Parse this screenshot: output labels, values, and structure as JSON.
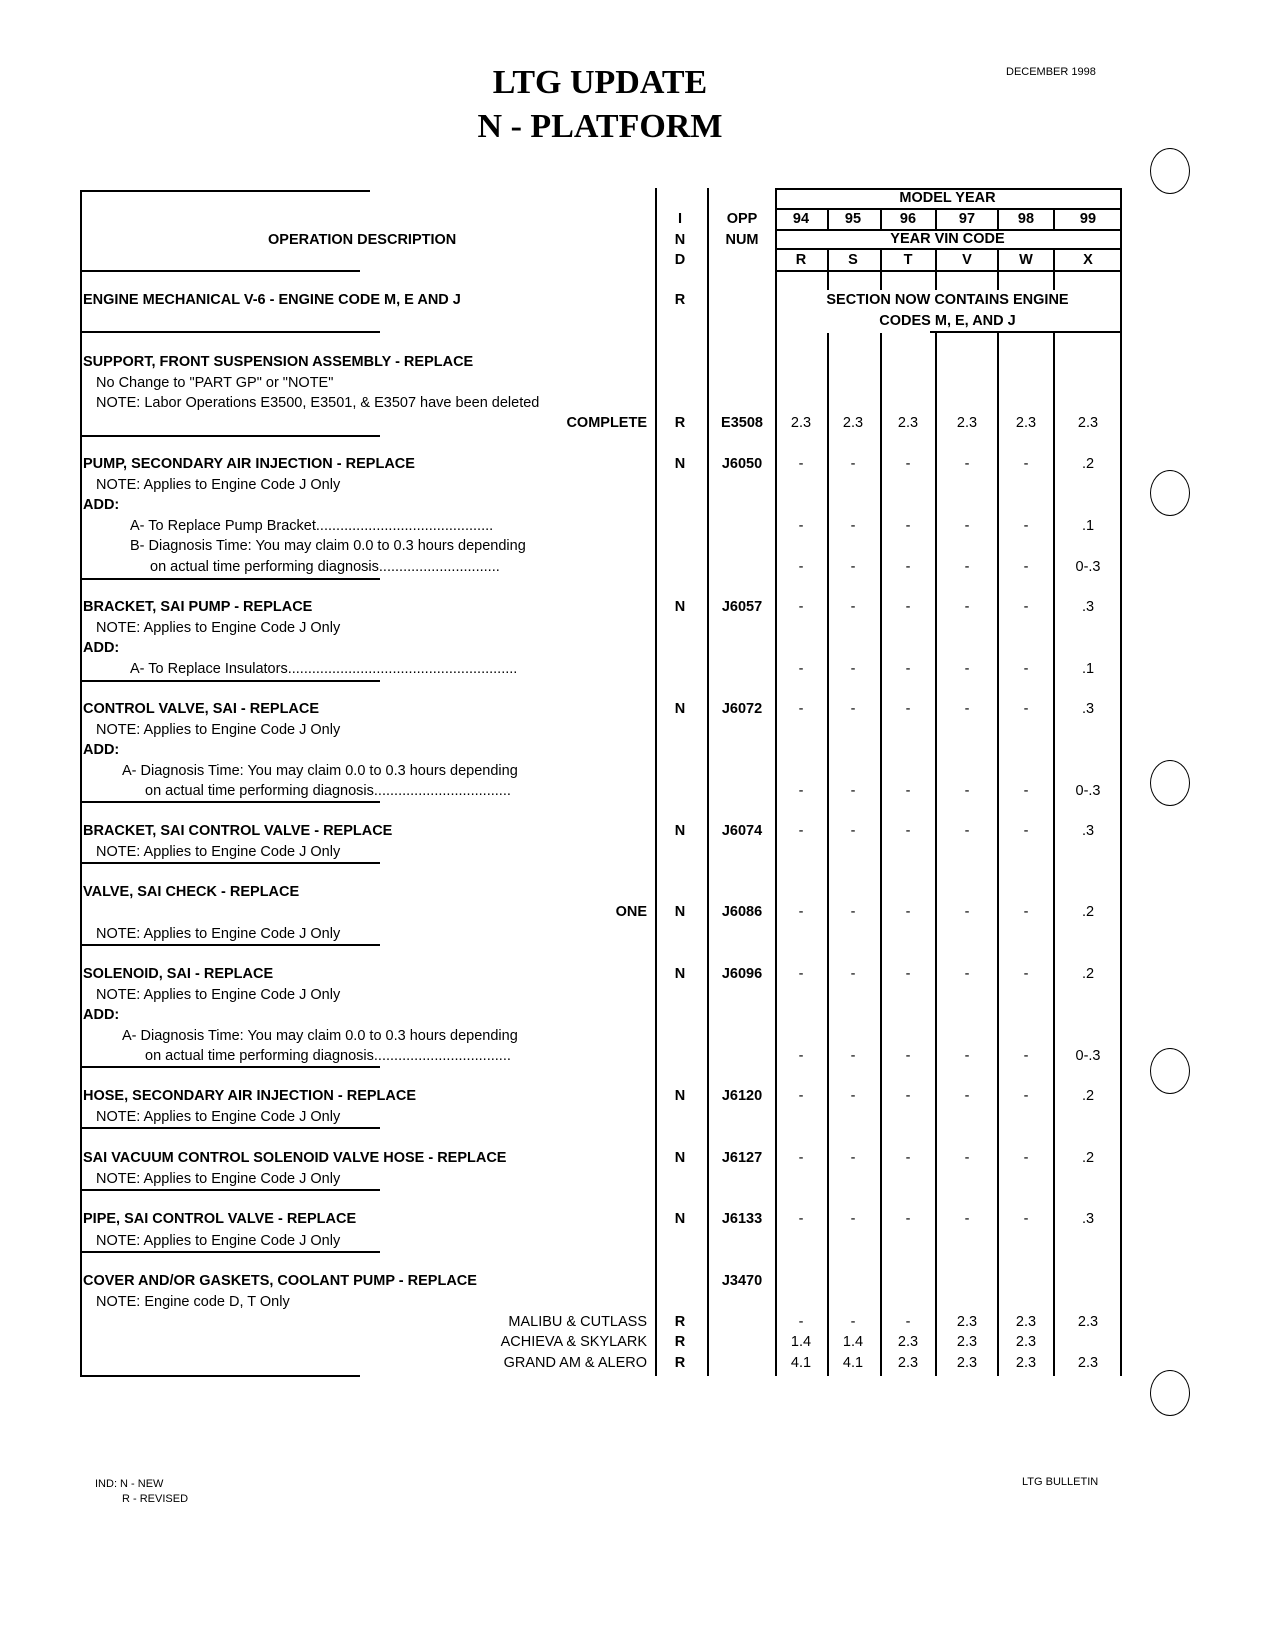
{
  "header": {
    "date": "DECEMBER 1998",
    "title_line1": "LTG UPDATE",
    "title_line2": "N - PLATFORM"
  },
  "table_header": {
    "operation_description": "OPERATION DESCRIPTION",
    "ind": [
      "I",
      "N",
      "D"
    ],
    "opp": [
      "OPP",
      "NUM"
    ],
    "model_year": "MODEL YEAR",
    "years": [
      "94",
      "95",
      "96",
      "97",
      "98",
      "99"
    ],
    "year_vin_code": "YEAR VIN CODE",
    "vin_codes": [
      "R",
      "S",
      "T",
      "V",
      "W",
      "X"
    ]
  },
  "section_note": [
    "SECTION NOW CONTAINS ENGINE",
    "CODES M, E, AND J"
  ],
  "rows": [
    {
      "desc": "ENGINE MECHANICAL V-6 - ENGINE CODE M, E AND J",
      "style": "bold",
      "ind": "R"
    },
    {
      "desc": "SUPPORT, FRONT SUSPENSION ASSEMBLY - REPLACE",
      "style": "bold"
    },
    {
      "desc": "No Change to \"PART GP\" or \"NOTE\"",
      "style": "note"
    },
    {
      "desc": "NOTE: Labor Operations E3500, E3501, & E3507 have been deleted",
      "style": "note"
    },
    {
      "desc": "COMPLETE",
      "style": "right-bold",
      "ind": "R",
      "opp": "E3508",
      "values": [
        "2.3",
        "2.3",
        "2.3",
        "2.3",
        "2.3",
        "2.3"
      ]
    },
    {
      "desc": "PUMP, SECONDARY AIR INJECTION - REPLACE",
      "style": "bold",
      "ind": "N",
      "opp": "J6050",
      "values": [
        "-",
        "-",
        "-",
        "-",
        "-",
        ".2"
      ]
    },
    {
      "desc": "NOTE: Applies to Engine Code J Only",
      "style": "note"
    },
    {
      "desc": "ADD:",
      "style": "bold"
    },
    {
      "desc": "A- To Replace Pump Bracket............................................",
      "style": "sub",
      "values": [
        "-",
        "-",
        "-",
        "-",
        "-",
        ".1"
      ]
    },
    {
      "desc": "B- Diagnosis Time: You may claim 0.0 to 0.3 hours depending",
      "style": "sub"
    },
    {
      "desc": "on actual time performing diagnosis..............................",
      "style": "sub2",
      "values": [
        "-",
        "-",
        "-",
        "-",
        "-",
        "0-.3"
      ]
    },
    {
      "desc": "BRACKET, SAI PUMP - REPLACE",
      "style": "bold",
      "ind": "N",
      "opp": "J6057",
      "values": [
        "-",
        "-",
        "-",
        "-",
        "-",
        ".3"
      ]
    },
    {
      "desc": "NOTE: Applies to Engine Code J Only",
      "style": "note"
    },
    {
      "desc": "ADD:",
      "style": "bold"
    },
    {
      "desc": "A- To Replace Insulators.........................................................",
      "style": "sub",
      "values": [
        "-",
        "-",
        "-",
        "-",
        "-",
        ".1"
      ]
    },
    {
      "desc": "CONTROL VALVE, SAI - REPLACE",
      "style": "bold",
      "ind": "N",
      "opp": "J6072",
      "values": [
        "-",
        "-",
        "-",
        "-",
        "-",
        ".3"
      ]
    },
    {
      "desc": "NOTE: Applies to Engine Code J Only",
      "style": "note"
    },
    {
      "desc": "ADD:",
      "style": "bold"
    },
    {
      "desc": "A- Diagnosis Time: You may claim 0.0 to 0.3 hours depending",
      "style": "subA"
    },
    {
      "desc": "on actual time performing diagnosis..................................",
      "style": "subA2",
      "values": [
        "-",
        "-",
        "-",
        "-",
        "-",
        "0-.3"
      ]
    },
    {
      "desc": "BRACKET, SAI CONTROL VALVE - REPLACE",
      "style": "bold",
      "ind": "N",
      "opp": "J6074",
      "values": [
        "-",
        "-",
        "-",
        "-",
        "-",
        ".3"
      ]
    },
    {
      "desc": "NOTE: Applies to Engine Code J Only",
      "style": "note"
    },
    {
      "desc": "VALVE, SAI CHECK - REPLACE",
      "style": "bold"
    },
    {
      "desc": "ONE",
      "style": "right-bold",
      "ind": "N",
      "opp": "J6086",
      "values": [
        "-",
        "-",
        "-",
        "-",
        "-",
        ".2"
      ]
    },
    {
      "desc": "NOTE: Applies to Engine Code J Only",
      "style": "note"
    },
    {
      "desc": "SOLENOID, SAI - REPLACE",
      "style": "bold",
      "ind": "N",
      "opp": "J6096",
      "values": [
        "-",
        "-",
        "-",
        "-",
        "-",
        ".2"
      ]
    },
    {
      "desc": "NOTE: Applies to Engine Code J Only",
      "style": "note"
    },
    {
      "desc": "ADD:",
      "style": "bold"
    },
    {
      "desc": "A- Diagnosis Time: You may claim 0.0 to 0.3 hours depending",
      "style": "subA"
    },
    {
      "desc": "on actual time performing diagnosis..................................",
      "style": "subA2",
      "values": [
        "-",
        "-",
        "-",
        "-",
        "-",
        "0-.3"
      ]
    },
    {
      "desc": "HOSE, SECONDARY AIR INJECTION - REPLACE",
      "style": "bold",
      "ind": "N",
      "opp": "J6120",
      "values": [
        "-",
        "-",
        "-",
        "-",
        "-",
        ".2"
      ]
    },
    {
      "desc": "NOTE: Applies to Engine Code J Only",
      "style": "note"
    },
    {
      "desc": "SAI VACUUM CONTROL SOLENOID VALVE HOSE -  REPLACE",
      "style": "bold",
      "ind": "N",
      "opp": "J6127",
      "values": [
        "-",
        "-",
        "-",
        "-",
        "-",
        ".2"
      ]
    },
    {
      "desc": "NOTE: Applies to Engine Code J Only",
      "style": "note"
    },
    {
      "desc": "PIPE, SAI CONTROL VALVE - REPLACE",
      "style": "bold",
      "ind": "N",
      "opp": "J6133",
      "values": [
        "-",
        "-",
        "-",
        "-",
        "-",
        ".3"
      ]
    },
    {
      "desc": "NOTE: Applies to Engine Code J Only",
      "style": "note"
    },
    {
      "desc": "COVER AND/OR GASKETS, COOLANT PUMP - REPLACE",
      "style": "bold",
      "opp": "J3470"
    },
    {
      "desc": "NOTE: Engine code D, T Only",
      "style": "note"
    },
    {
      "desc": "MALIBU & CUTLASS",
      "style": "right",
      "ind": "R",
      "values": [
        "-",
        "-",
        "-",
        "2.3",
        "2.3",
        "2.3"
      ]
    },
    {
      "desc": "ACHIEVA & SKYLARK",
      "style": "right",
      "ind": "R",
      "values": [
        "1.4",
        "1.4",
        "2.3",
        "2.3",
        "2.3",
        ""
      ]
    },
    {
      "desc": "GRAND AM & ALERO",
      "style": "right",
      "ind": "R",
      "values": [
        "4.1",
        "4.1",
        "2.3",
        "2.3",
        "2.3",
        "2.3"
      ]
    }
  ],
  "footer": {
    "legend_line1": "IND: N - NEW",
    "legend_line2": "R - REVISED",
    "bulletin": "LTG BULLETIN"
  }
}
